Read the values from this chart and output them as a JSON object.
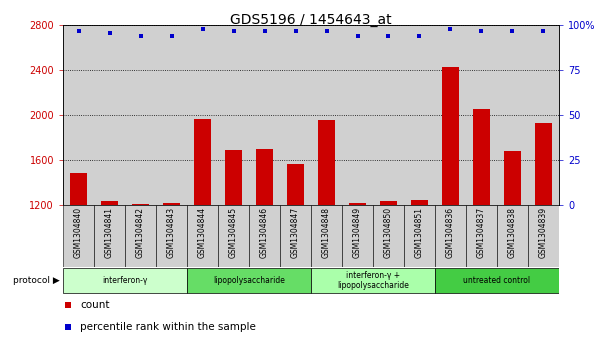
{
  "title": "GDS5196 / 1454643_at",
  "samples": [
    "GSM1304840",
    "GSM1304841",
    "GSM1304842",
    "GSM1304843",
    "GSM1304844",
    "GSM1304845",
    "GSM1304846",
    "GSM1304847",
    "GSM1304848",
    "GSM1304849",
    "GSM1304850",
    "GSM1304851",
    "GSM1304836",
    "GSM1304837",
    "GSM1304838",
    "GSM1304839"
  ],
  "counts": [
    1490,
    1240,
    1210,
    1215,
    1970,
    1690,
    1700,
    1565,
    1960,
    1215,
    1235,
    1245,
    2430,
    2060,
    1680,
    1930
  ],
  "percentile_ranks": [
    97,
    96,
    94,
    94,
    98,
    97,
    97,
    97,
    97,
    94,
    94,
    94,
    98,
    97,
    97,
    97
  ],
  "ylim_left": [
    1200,
    2800
  ],
  "ylim_right": [
    0,
    100
  ],
  "yticks_left": [
    1200,
    1600,
    2000,
    2400,
    2800
  ],
  "yticks_right": [
    0,
    25,
    50,
    75,
    100
  ],
  "ytick_labels_right": [
    "0",
    "25",
    "50",
    "75",
    "100%"
  ],
  "bar_color": "#cc0000",
  "dot_color": "#0000cc",
  "grid_color": "#000000",
  "col_bg_color": "#d0d0d0",
  "protocol_groups": [
    {
      "label": "interferon-γ",
      "start": 0,
      "end": 3,
      "color": "#ccffcc"
    },
    {
      "label": "lipopolysaccharide",
      "start": 4,
      "end": 7,
      "color": "#66dd66"
    },
    {
      "label": "interferon-γ +\nlipopolysaccharide",
      "start": 8,
      "end": 11,
      "color": "#aaffaa"
    },
    {
      "label": "untreated control",
      "start": 12,
      "end": 15,
      "color": "#44cc44"
    }
  ],
  "legend_count_label": "count",
  "legend_percentile_label": "percentile rank within the sample",
  "title_fontsize": 10,
  "tick_fontsize": 7,
  "label_fontsize": 7.5,
  "sample_fontsize": 5.5
}
